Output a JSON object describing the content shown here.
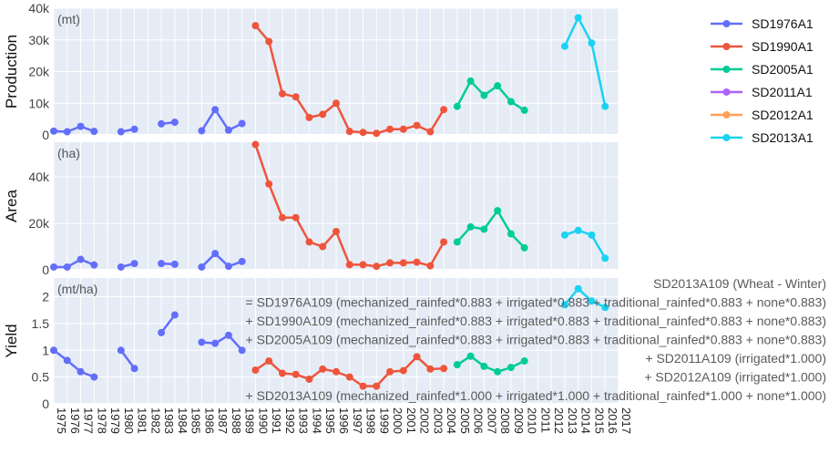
{
  "chart_data": {
    "type": "line",
    "grid": true,
    "legend_position": "top-right",
    "x_ticks": [
      "1975",
      "1976",
      "1977",
      "1978",
      "1979",
      "1980",
      "1981",
      "1982",
      "1983",
      "1984",
      "1985",
      "1986",
      "1987",
      "1988",
      "1989",
      "1990",
      "1991",
      "1992",
      "1993",
      "1994",
      "1995",
      "1996",
      "1997",
      "1998",
      "1999",
      "2000",
      "2001",
      "2002",
      "2003",
      "2004",
      "2005",
      "2006",
      "2007",
      "2008",
      "2009",
      "2010",
      "2011",
      "2012",
      "2013",
      "2014",
      "2015",
      "2016",
      "2017"
    ],
    "xlim": [
      1975,
      2017
    ],
    "series": [
      {
        "name": "SD1976A1",
        "color": "#636efa"
      },
      {
        "name": "SD1990A1",
        "color": "#ef553b"
      },
      {
        "name": "SD2005A1",
        "color": "#00cc96"
      },
      {
        "name": "SD2011A1",
        "color": "#ab63fa"
      },
      {
        "name": "SD2012A1",
        "color": "#ffa15a"
      },
      {
        "name": "SD2013A1",
        "color": "#19d3f3"
      }
    ],
    "panels": [
      {
        "ylabel": "Production",
        "unit": "(mt)",
        "ylim": [
          0,
          40000
        ],
        "ytick_values": [
          0,
          10000,
          20000,
          30000,
          40000
        ],
        "ytick_labels": [
          "0",
          "10k",
          "20k",
          "30k",
          "40k"
        ],
        "traces": [
          {
            "series": "SD1976A1",
            "x": [
              1975,
              1976,
              1977,
              1978
            ],
            "y": [
              1200,
              1000,
              2700,
              1100
            ]
          },
          {
            "series": "SD1976A1",
            "x": [
              1980,
              1981
            ],
            "y": [
              1000,
              1800
            ]
          },
          {
            "series": "SD1976A1",
            "x": [
              1983,
              1984
            ],
            "y": [
              3500,
              4000
            ]
          },
          {
            "series": "SD1976A1",
            "x": [
              1986,
              1987,
              1988,
              1989
            ],
            "y": [
              1300,
              8000,
              1500,
              3600
            ]
          },
          {
            "series": "SD1990A1",
            "x": [
              1990,
              1991,
              1992,
              1993,
              1994,
              1995,
              1996,
              1997,
              1998,
              1999,
              2000,
              2001,
              2002,
              2003,
              2004
            ],
            "y": [
              34500,
              29500,
              13000,
              12000,
              5500,
              6500,
              10000,
              1100,
              800,
              500,
              1800,
              1800,
              3000,
              1000,
              8000
            ]
          },
          {
            "series": "SD2005A1",
            "x": [
              2005,
              2006,
              2007,
              2008,
              2009,
              2010
            ],
            "y": [
              9000,
              17000,
              12500,
              15500,
              10500,
              7800
            ]
          },
          {
            "series": "SD2013A1",
            "x": [
              2013,
              2014,
              2015,
              2016
            ],
            "y": [
              28000,
              37000,
              29000,
              9000
            ]
          }
        ]
      },
      {
        "ylabel": "Area",
        "unit": "(ha)",
        "ylim": [
          0,
          55000
        ],
        "ytick_values": [
          0,
          20000,
          40000
        ],
        "ytick_labels": [
          "0",
          "20k",
          "40k"
        ],
        "traces": [
          {
            "series": "SD1976A1",
            "x": [
              1975,
              1976,
              1977,
              1978
            ],
            "y": [
              1200,
              1200,
              4500,
              2100
            ]
          },
          {
            "series": "SD1976A1",
            "x": [
              1980,
              1981
            ],
            "y": [
              1200,
              2700
            ]
          },
          {
            "series": "SD1976A1",
            "x": [
              1983,
              1984
            ],
            "y": [
              2700,
              2400
            ]
          },
          {
            "series": "SD1976A1",
            "x": [
              1986,
              1987,
              1988,
              1989
            ],
            "y": [
              1200,
              7000,
              1500,
              3600
            ]
          },
          {
            "series": "SD1990A1",
            "x": [
              1990,
              1991,
              1992,
              1993,
              1994,
              1995,
              1996,
              1997,
              1998,
              1999,
              2000,
              2001,
              2002,
              2003,
              2004
            ],
            "y": [
              54000,
              37000,
              22500,
              22500,
              12000,
              10000,
              16500,
              2200,
              2200,
              1500,
              3000,
              3000,
              3300,
              1700,
              12000
            ]
          },
          {
            "series": "SD2005A1",
            "x": [
              2005,
              2006,
              2007,
              2008,
              2009,
              2010
            ],
            "y": [
              12000,
              18500,
              17500,
              25500,
              15500,
              9500
            ]
          },
          {
            "series": "SD2013A1",
            "x": [
              2013,
              2014,
              2015,
              2016
            ],
            "y": [
              15000,
              17000,
              15000,
              5000
            ]
          }
        ]
      },
      {
        "ylabel": "Yield",
        "unit": "(mt/ha)",
        "ylim": [
          0,
          2.35
        ],
        "ytick_values": [
          0,
          0.5,
          1,
          1.5,
          2
        ],
        "ytick_labels": [
          "0",
          "0.5",
          "1",
          "1.5",
          "2"
        ],
        "traces": [
          {
            "series": "SD1976A1",
            "x": [
              1975,
              1976,
              1977,
              1978
            ],
            "y": [
              1.0,
              0.81,
              0.6,
              0.5
            ]
          },
          {
            "series": "SD1976A1",
            "x": [
              1980,
              1981
            ],
            "y": [
              1.0,
              0.66
            ]
          },
          {
            "series": "SD1976A1",
            "x": [
              1983,
              1984
            ],
            "y": [
              1.33,
              1.66
            ]
          },
          {
            "series": "SD1976A1",
            "x": [
              1986,
              1987,
              1988,
              1989
            ],
            "y": [
              1.15,
              1.13,
              1.28,
              1.0
            ]
          },
          {
            "series": "SD1990A1",
            "x": [
              1990,
              1991,
              1992,
              1993,
              1994,
              1995,
              1996,
              1997,
              1998,
              1999,
              2000,
              2001,
              2002,
              2003,
              2004
            ],
            "y": [
              0.63,
              0.8,
              0.57,
              0.55,
              0.46,
              0.65,
              0.6,
              0.5,
              0.33,
              0.33,
              0.6,
              0.62,
              0.88,
              0.65,
              0.66
            ]
          },
          {
            "series": "SD2005A1",
            "x": [
              2005,
              2006,
              2007,
              2008,
              2009,
              2010
            ],
            "y": [
              0.73,
              0.89,
              0.7,
              0.6,
              0.68,
              0.8
            ]
          },
          {
            "series": "SD2013A1",
            "x": [
              2013,
              2014,
              2015,
              2016
            ],
            "y": [
              1.85,
              2.15,
              1.92,
              1.8
            ]
          }
        ]
      }
    ],
    "annotation_lines": [
      "SD2013A109 (Wheat - Winter)",
      "= SD1976A109 (mechanized_rainfed*0.883 + irrigated*0.883 + traditional_rainfed*0.883 + none*0.883)",
      "+ SD1990A109 (mechanized_rainfed*0.883 + irrigated*0.883 + traditional_rainfed*0.883 + none*0.883)",
      "+ SD2005A109 (mechanized_rainfed*0.883 + irrigated*0.883 + traditional_rainfed*0.883 + none*0.883)",
      "+ SD2011A109 (irrigated*1.000)",
      "+ SD2012A109 (irrigated*1.000)",
      "+ SD2013A109 (mechanized_rainfed*1.000 + irrigated*1.000 + traditional_rainfed*1.000 + none*1.000)"
    ]
  }
}
